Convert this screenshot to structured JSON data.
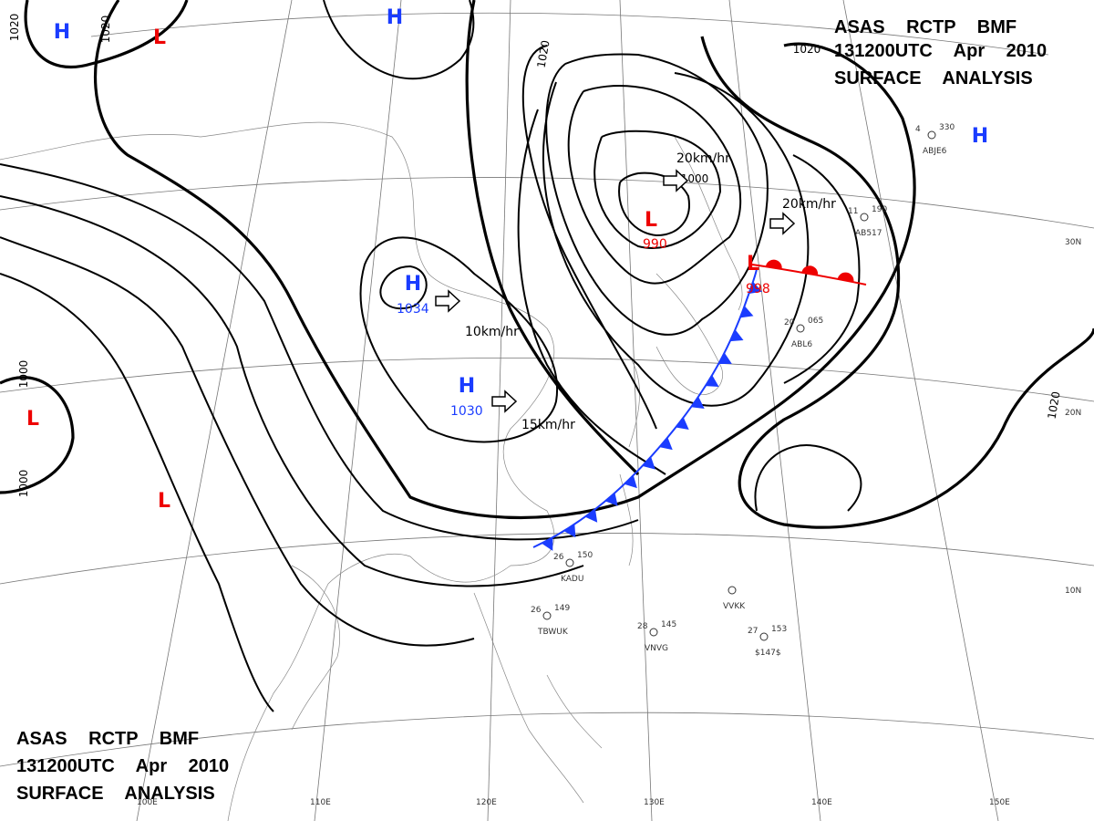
{
  "header_top": {
    "lines": [
      "ASAS RCTP BMF",
      "131200UTC Apr 2010",
      "SURFACE ANALYSIS"
    ]
  },
  "header_bottom": {
    "lines": [
      "ASAS RCTP BMF",
      "131200UTC Apr 2010",
      "SURFACE ANALYSIS"
    ]
  },
  "pressure_centers": [
    {
      "symbol": "H",
      "value": "1034"
    },
    {
      "symbol": "H",
      "value": "1030"
    },
    {
      "symbol": "L",
      "value": "990"
    },
    {
      "symbol": "L",
      "value": "998"
    },
    {
      "symbol": "H"
    },
    {
      "symbol": "L"
    },
    {
      "symbol": "H"
    },
    {
      "symbol": "H"
    },
    {
      "symbol": "L"
    },
    {
      "symbol": "L"
    }
  ],
  "isobar_labels": [
    "1020",
    "1020",
    "1020",
    "1020",
    "1000",
    "1000",
    "1000",
    "1020"
  ],
  "motion_labels": [
    "10km/hr",
    "15km/hr",
    "20km/hr",
    "20km/hr"
  ],
  "latitude_labels": [
    "30N",
    "20N",
    "10N"
  ],
  "longitude_labels": [
    "100E",
    "110E",
    "120E",
    "130E",
    "140E",
    "150E"
  ],
  "stations": [
    {
      "id": "KADU",
      "pressure": "150",
      "temp": "26"
    },
    {
      "id": "VVKK",
      "pressure": "",
      "temp": ""
    },
    {
      "id": "TBWUK",
      "pressure": "149",
      "temp": "26"
    },
    {
      "id": "VNVG",
      "pressure": "145",
      "temp": "28"
    },
    {
      "id": "ABJE6",
      "pressure": "330",
      "temp": "4"
    },
    {
      "id": "AB517",
      "pressure": "190",
      "temp": "11"
    },
    {
      "id": "$147$",
      "pressure": "153",
      "temp": "27"
    },
    {
      "id": "ABL6",
      "pressure": "065",
      "temp": "20"
    }
  ]
}
